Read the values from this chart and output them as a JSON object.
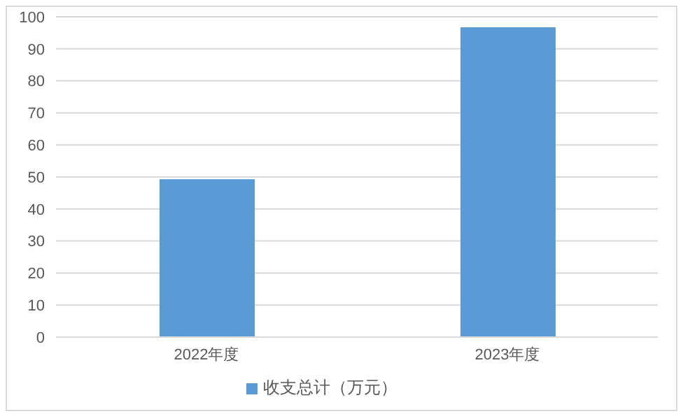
{
  "chart_data": {
    "type": "bar",
    "categories": [
      "2022年度",
      "2023年度"
    ],
    "series": [
      {
        "name": "收支总计（万元）",
        "color": "#5b9bd5",
        "values": [
          49.3,
          96.7
        ]
      }
    ],
    "ylim": [
      0,
      100
    ],
    "yticks": [
      0,
      10,
      20,
      30,
      40,
      50,
      60,
      70,
      80,
      90,
      100
    ],
    "grid": "y",
    "legend": "bottom"
  }
}
